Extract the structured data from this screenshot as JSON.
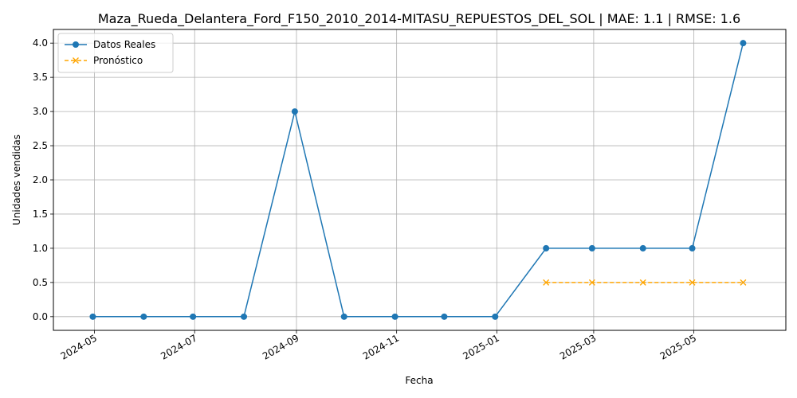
{
  "chart_data": {
    "type": "line",
    "title": "Maza_Rueda_Delantera_Ford_F150_2010_2014-MITASU_REPUESTOS_DEL_SOL | MAE: 1.1 | RMSE: 1.6",
    "xlabel": "Fecha",
    "ylabel": "Unidades vendidas",
    "xlim": [
      "2024-04-06",
      "2025-06-26"
    ],
    "ylim": [
      -0.2,
      4.2
    ],
    "x_ticks": [
      "2024-05-01",
      "2024-07-01",
      "2024-09-01",
      "2024-11-01",
      "2025-01-01",
      "2025-03-01",
      "2025-05-01"
    ],
    "x_tick_labels": [
      "2024-05",
      "2024-07",
      "2024-09",
      "2024-11",
      "2025-01",
      "2025-03",
      "2025-05"
    ],
    "y_ticks": [
      0.0,
      0.5,
      1.0,
      1.5,
      2.0,
      2.5,
      3.0,
      3.5,
      4.0
    ],
    "y_tick_labels": [
      "0.0",
      "0.5",
      "1.0",
      "1.5",
      "2.0",
      "2.5",
      "3.0",
      "3.5",
      "4.0"
    ],
    "grid": true,
    "legend_position": "top-left",
    "series": [
      {
        "name": "Datos Reales",
        "color": "#1f77b4",
        "line_style": "solid",
        "marker": "circle",
        "x": [
          "2024-04-30",
          "2024-05-31",
          "2024-06-30",
          "2024-07-31",
          "2024-08-31",
          "2024-09-30",
          "2024-10-31",
          "2024-11-30",
          "2024-12-31",
          "2025-01-31",
          "2025-02-28",
          "2025-03-31",
          "2025-04-30",
          "2025-05-31"
        ],
        "values": [
          0,
          0,
          0,
          0,
          3,
          0,
          0,
          0,
          0,
          1,
          1,
          1,
          1,
          4
        ]
      },
      {
        "name": "Pronóstico",
        "color": "#ffa500",
        "line_style": "dashed",
        "marker": "x",
        "x": [
          "2025-01-31",
          "2025-02-28",
          "2025-03-31",
          "2025-04-30",
          "2025-05-31"
        ],
        "values": [
          0.5,
          0.5,
          0.5,
          0.5,
          0.5
        ]
      }
    ]
  }
}
